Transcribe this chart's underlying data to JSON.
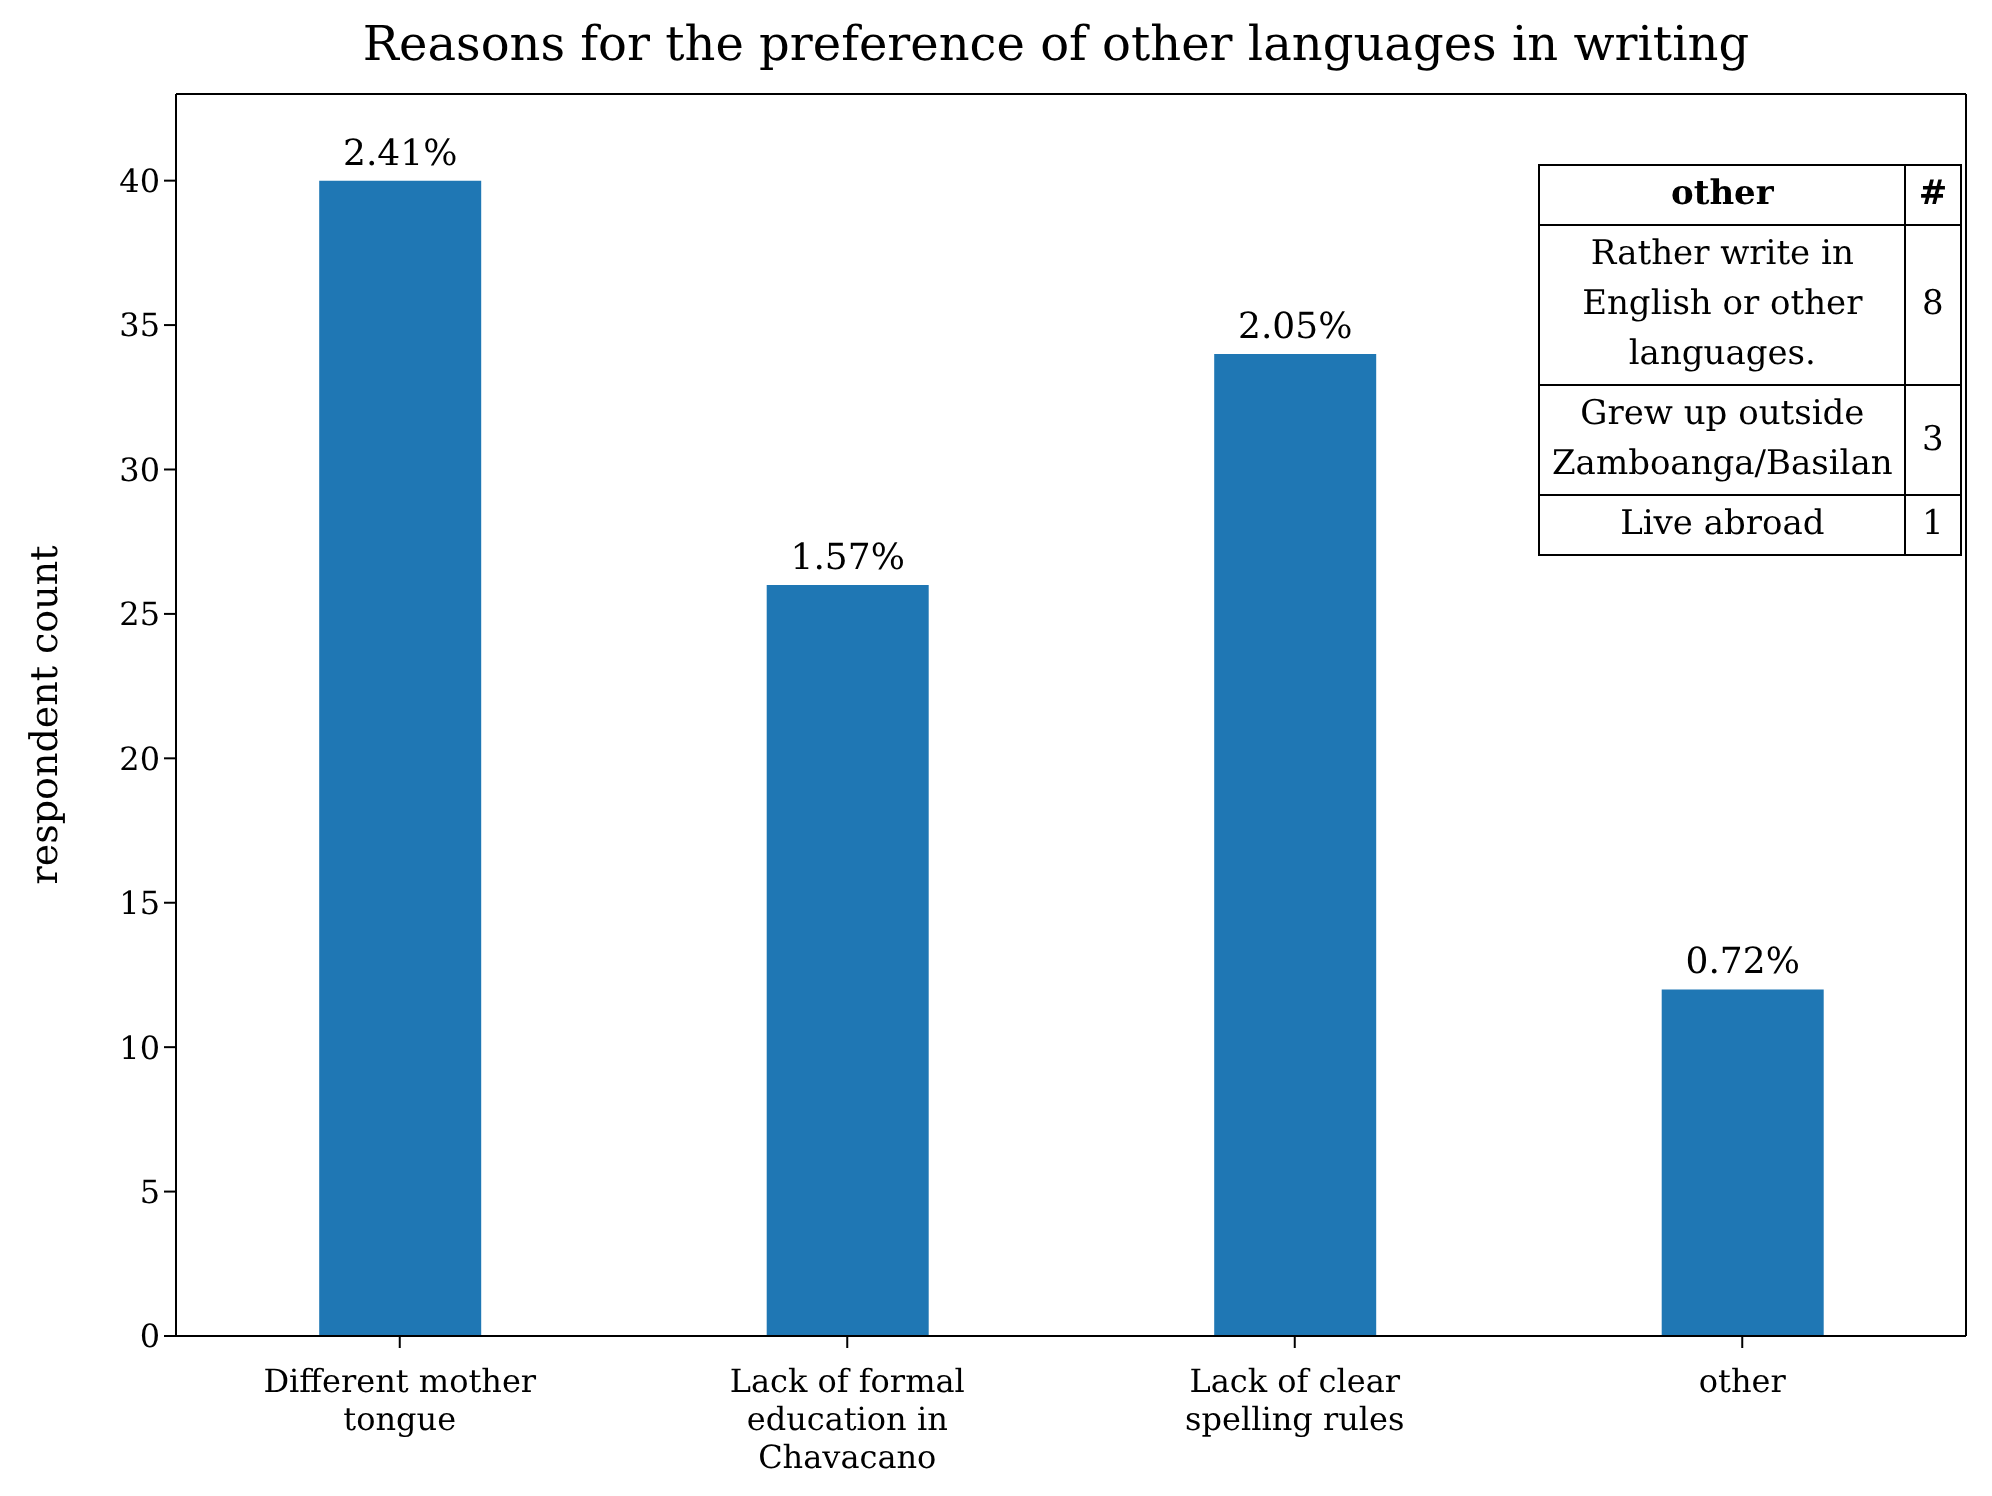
{
  "chart_data": {
    "type": "bar",
    "title": "Reasons for the preference of other languages in writing",
    "ylabel": "respondent count",
    "categories": [
      "Different mother tongue",
      "Lack of formal education in Chavacano",
      "Lack of clear spelling rules",
      "other"
    ],
    "values": [
      40,
      26,
      34,
      12
    ],
    "color": "#1f77b4",
    "ylim": [
      0,
      43
    ],
    "yticks": [
      0,
      5,
      10,
      15,
      20,
      25,
      30,
      35,
      40
    ],
    "grid": false,
    "legend": false,
    "annotations": [
      {
        "text": "2.41%",
        "x": "Different mother tongue",
        "y": 40
      },
      {
        "text": "1.57%",
        "x": "Lack of formal education in Chavacano",
        "y": 26
      },
      {
        "text": "2.05%",
        "x": "Lack of clear spelling rules",
        "y": 34
      },
      {
        "text": "0.72%",
        "x": "other",
        "y": 12
      },
      "other",
      "#",
      "Rather write in English or other languages.",
      "8",
      "Grew up outside Zamboanga/Basilan",
      "3",
      "Live abroad",
      "1"
    ]
  }
}
